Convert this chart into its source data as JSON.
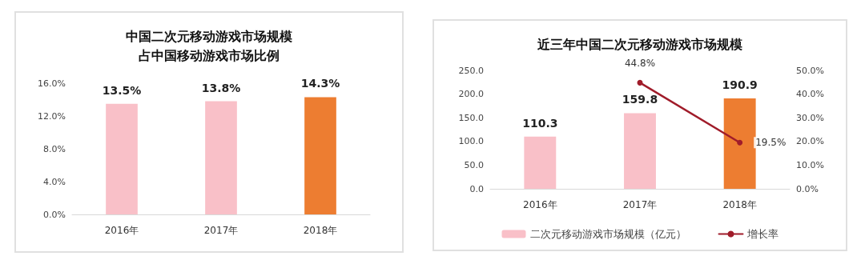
{
  "chart_data": [
    {
      "type": "bar",
      "title": "中国二次元移动游戏市场规模占中国移动游戏市场比例",
      "categories": [
        "2016年",
        "2017年",
        "2018年"
      ],
      "values": [
        13.5,
        13.8,
        14.3
      ],
      "colors": [
        "#f9c0c8",
        "#f9c0c8",
        "#ed7d31"
      ],
      "value_labels": [
        "13.5%",
        "13.8%",
        "14.3%"
      ],
      "ylim": [
        0,
        16
      ],
      "yticks": [
        {
          "value": 0,
          "label": "0.0%"
        },
        {
          "value": 4,
          "label": "4.0%"
        },
        {
          "value": 8,
          "label": "8.0%"
        },
        {
          "value": 12,
          "label": "12.0%"
        },
        {
          "value": 16,
          "label": "16.0%"
        }
      ]
    },
    {
      "type": "bar",
      "title": "近三年中国二次元移动游戏市场规模",
      "categories": [
        "2016年",
        "2017年",
        "2018年"
      ],
      "series": [
        {
          "name": "二次元移动游戏市场规模（亿元）",
          "color": "#f9c0c8",
          "colors": [
            "#f9c0c8",
            "#f9c0c8",
            "#ed7d31"
          ],
          "values": [
            110.3,
            159.8,
            190.9
          ],
          "value_labels": [
            "110.3",
            "159.8",
            "190.9"
          ]
        },
        {
          "name": "增长率",
          "type": "line",
          "axis": "y2",
          "color": "#a01c2a",
          "values": [
            null,
            44.8,
            19.5
          ],
          "value_labels": [
            null,
            "44.8%",
            "19.5%"
          ]
        }
      ],
      "marker": "circle",
      "legend": "bottom",
      "ylim": [
        0,
        250
      ],
      "yticks": [
        {
          "value": 0,
          "label": "0.0"
        },
        {
          "value": 50,
          "label": "50.0"
        },
        {
          "value": 100,
          "label": "100.0"
        },
        {
          "value": 150,
          "label": "150.0"
        },
        {
          "value": 200,
          "label": "200.0"
        },
        {
          "value": 250,
          "label": "250.0"
        }
      ],
      "y2lim": [
        0,
        50
      ],
      "y2ticks": [
        {
          "value": 0,
          "label": "0.0%"
        },
        {
          "value": 10,
          "label": "10.0%"
        },
        {
          "value": 20,
          "label": "20.0%"
        },
        {
          "value": 30,
          "label": "30.0%"
        },
        {
          "value": 40,
          "label": "40.0%"
        },
        {
          "value": 50,
          "label": "50.0%"
        }
      ]
    }
  ]
}
